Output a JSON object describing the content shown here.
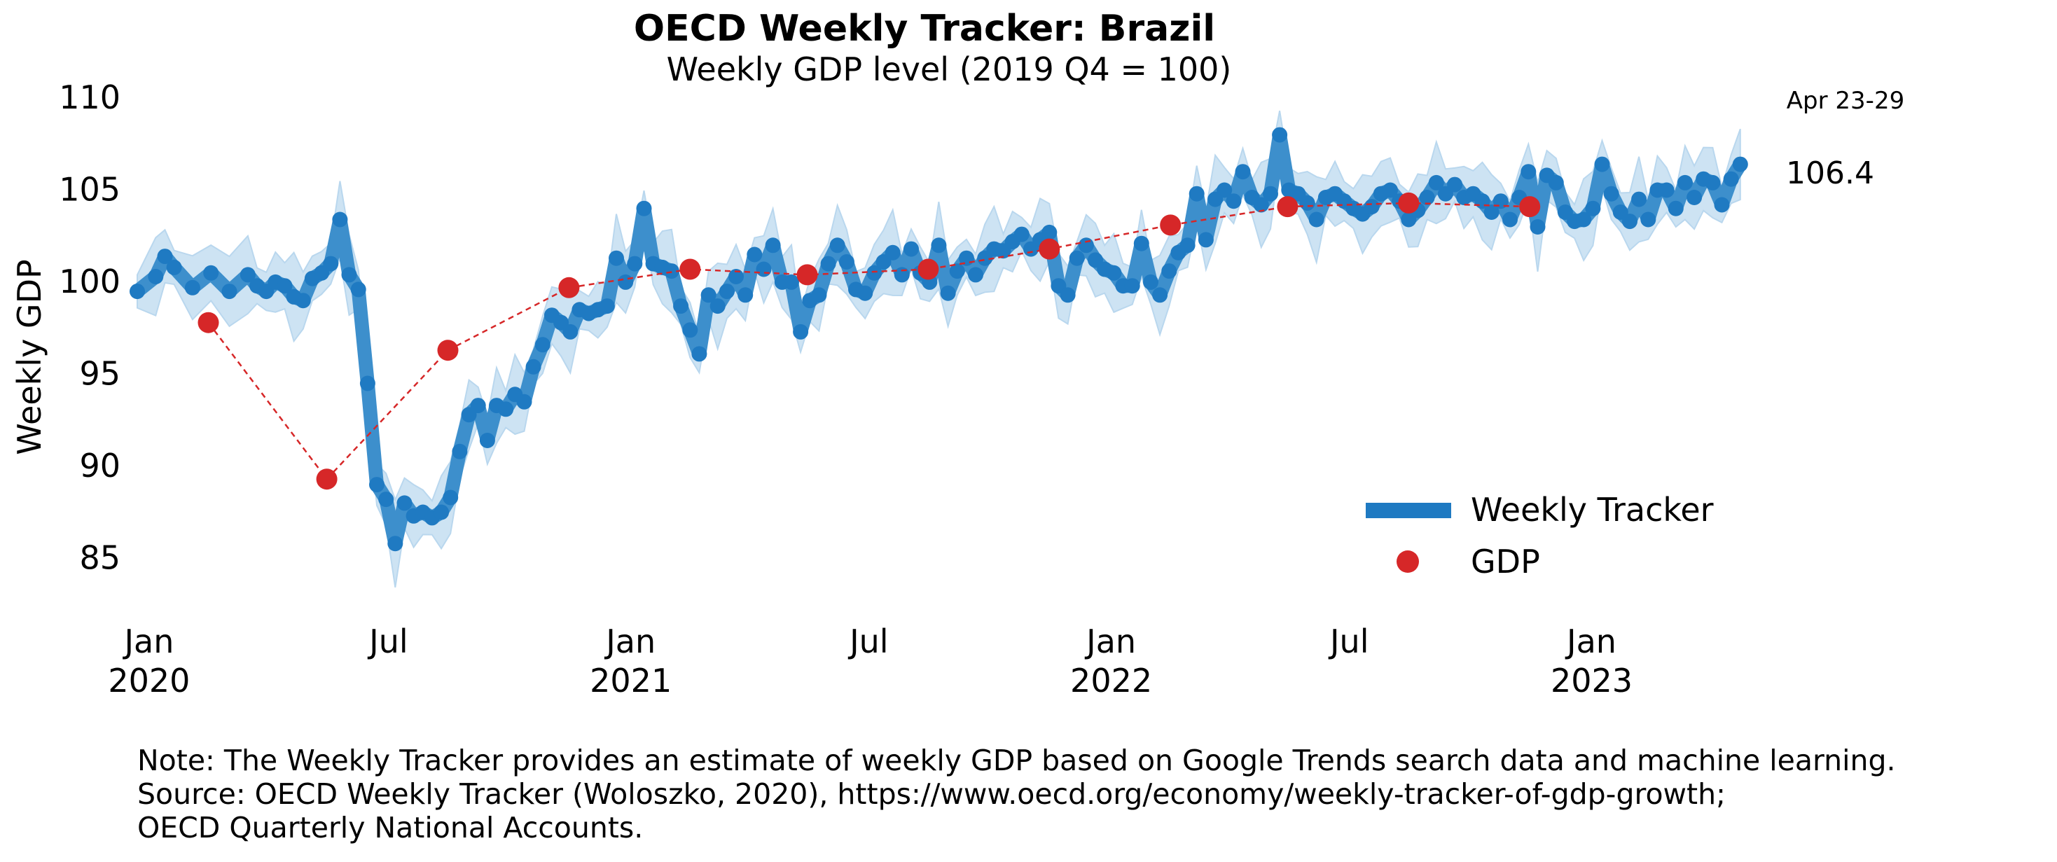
{
  "chart_data": {
    "type": "line",
    "title": "OECD Weekly Tracker: Brazil",
    "subtitle": "Weekly GDP level (2019 Q4 = 100)",
    "ylabel": "Weekly GDP",
    "xlabel": "",
    "ylim": [
      82.5,
      110
    ],
    "xlim": [
      "2019-12-23",
      "2023-05-01"
    ],
    "y_ticks": [
      85,
      90,
      95,
      100,
      105,
      110
    ],
    "x_ticks": [
      {
        "date": "2020-01-01",
        "label": "Jan",
        "year": "2020"
      },
      {
        "date": "2020-07-01",
        "label": "Jul",
        "year": ""
      },
      {
        "date": "2021-01-01",
        "label": "Jan",
        "year": "2021"
      },
      {
        "date": "2021-07-01",
        "label": "Jul",
        "year": ""
      },
      {
        "date": "2022-01-01",
        "label": "Jan",
        "year": "2022"
      },
      {
        "date": "2022-07-01",
        "label": "Jul",
        "year": ""
      },
      {
        "date": "2023-01-01",
        "label": "Jan",
        "year": "2023"
      }
    ],
    "grid": false,
    "legend_position": "lower-right",
    "legend": [
      {
        "label": "Weekly Tracker",
        "marker": "band"
      },
      {
        "label": "GDP",
        "marker": "dot"
      }
    ],
    "series": [
      {
        "name": "Weekly Tracker",
        "color": "#1f7ac2",
        "band_color": "#cde3f3",
        "points": [
          [
            "2019-12-23",
            99.5
          ],
          [
            "2020-01-06",
            100.3
          ],
          [
            "2020-01-13",
            101.4
          ],
          [
            "2020-01-20",
            100.8
          ],
          [
            "2020-02-03",
            99.7
          ],
          [
            "2020-02-17",
            100.5
          ],
          [
            "2020-03-02",
            99.5
          ],
          [
            "2020-03-16",
            100.4
          ],
          [
            "2020-03-23",
            99.8
          ],
          [
            "2020-03-30",
            99.5
          ],
          [
            "2020-04-06",
            100.0
          ],
          [
            "2020-04-13",
            99.8
          ],
          [
            "2020-04-20",
            99.2
          ],
          [
            "2020-04-27",
            99.0
          ],
          [
            "2020-05-04",
            100.2
          ],
          [
            "2020-05-11",
            100.5
          ],
          [
            "2020-05-18",
            101.0
          ],
          [
            "2020-05-25",
            103.4
          ],
          [
            "2020-06-01",
            100.4
          ],
          [
            "2020-06-08",
            99.6
          ],
          [
            "2020-06-15",
            94.5
          ],
          [
            "2020-06-22",
            89.0
          ],
          [
            "2020-06-29",
            88.2
          ],
          [
            "2020-07-06",
            85.8
          ],
          [
            "2020-07-13",
            88.0
          ],
          [
            "2020-07-20",
            87.3
          ],
          [
            "2020-07-27",
            87.5
          ],
          [
            "2020-08-03",
            87.2
          ],
          [
            "2020-08-10",
            87.5
          ],
          [
            "2020-08-17",
            88.3
          ],
          [
            "2020-08-24",
            90.8
          ],
          [
            "2020-08-31",
            92.8
          ],
          [
            "2020-09-07",
            93.3
          ],
          [
            "2020-09-14",
            91.4
          ],
          [
            "2020-09-21",
            93.3
          ],
          [
            "2020-09-28",
            93.1
          ],
          [
            "2020-10-05",
            93.9
          ],
          [
            "2020-10-12",
            93.5
          ],
          [
            "2020-10-19",
            95.4
          ],
          [
            "2020-10-26",
            96.6
          ],
          [
            "2020-11-02",
            98.2
          ],
          [
            "2020-11-09",
            97.8
          ],
          [
            "2020-11-16",
            97.3
          ],
          [
            "2020-11-23",
            98.5
          ],
          [
            "2020-11-30",
            98.3
          ],
          [
            "2020-12-07",
            98.5
          ],
          [
            "2020-12-14",
            98.7
          ],
          [
            "2020-12-21",
            101.3
          ],
          [
            "2020-12-28",
            100.0
          ],
          [
            "2021-01-04",
            101.0
          ],
          [
            "2021-01-11",
            104.0
          ],
          [
            "2021-01-18",
            101.0
          ],
          [
            "2021-01-25",
            100.8
          ],
          [
            "2021-02-01",
            100.6
          ],
          [
            "2021-02-08",
            98.7
          ],
          [
            "2021-02-15",
            97.4
          ],
          [
            "2021-02-22",
            96.1
          ],
          [
            "2021-03-01",
            99.3
          ],
          [
            "2021-03-08",
            98.7
          ],
          [
            "2021-03-15",
            99.5
          ],
          [
            "2021-03-22",
            100.3
          ],
          [
            "2021-03-29",
            99.3
          ],
          [
            "2021-04-05",
            101.5
          ],
          [
            "2021-04-12",
            100.7
          ],
          [
            "2021-04-19",
            102.0
          ],
          [
            "2021-04-26",
            100.0
          ],
          [
            "2021-05-03",
            100.0
          ],
          [
            "2021-05-10",
            97.3
          ],
          [
            "2021-05-17",
            99.0
          ],
          [
            "2021-05-24",
            99.3
          ],
          [
            "2021-05-31",
            101.0
          ],
          [
            "2021-06-07",
            102.0
          ],
          [
            "2021-06-14",
            101.1
          ],
          [
            "2021-06-21",
            99.6
          ],
          [
            "2021-06-28",
            99.4
          ],
          [
            "2021-07-05",
            100.5
          ],
          [
            "2021-07-12",
            101.1
          ],
          [
            "2021-07-19",
            101.6
          ],
          [
            "2021-07-26",
            100.4
          ],
          [
            "2021-08-02",
            101.8
          ],
          [
            "2021-08-09",
            100.5
          ],
          [
            "2021-08-16",
            100.0
          ],
          [
            "2021-08-23",
            102.0
          ],
          [
            "2021-08-30",
            99.4
          ],
          [
            "2021-09-06",
            100.6
          ],
          [
            "2021-09-13",
            101.3
          ],
          [
            "2021-09-20",
            100.4
          ],
          [
            "2021-09-27",
            101.3
          ],
          [
            "2021-10-04",
            101.8
          ],
          [
            "2021-10-11",
            101.7
          ],
          [
            "2021-10-18",
            102.2
          ],
          [
            "2021-10-25",
            102.6
          ],
          [
            "2021-11-01",
            101.8
          ],
          [
            "2021-11-08",
            102.3
          ],
          [
            "2021-11-15",
            102.7
          ],
          [
            "2021-11-22",
            99.8
          ],
          [
            "2021-11-29",
            99.3
          ],
          [
            "2021-12-06",
            101.3
          ],
          [
            "2021-12-13",
            102.0
          ],
          [
            "2021-12-20",
            101.2
          ],
          [
            "2021-12-27",
            100.7
          ],
          [
            "2022-01-03",
            100.5
          ],
          [
            "2022-01-10",
            99.8
          ],
          [
            "2022-01-17",
            99.8
          ],
          [
            "2022-01-24",
            102.1
          ],
          [
            "2022-01-31",
            100.0
          ],
          [
            "2022-02-07",
            99.3
          ],
          [
            "2022-02-14",
            100.6
          ],
          [
            "2022-02-21",
            101.6
          ],
          [
            "2022-02-28",
            102.0
          ],
          [
            "2022-03-07",
            104.8
          ],
          [
            "2022-03-14",
            102.3
          ],
          [
            "2022-03-21",
            104.5
          ],
          [
            "2022-03-28",
            105.0
          ],
          [
            "2022-04-04",
            104.4
          ],
          [
            "2022-04-11",
            106.0
          ],
          [
            "2022-04-18",
            104.6
          ],
          [
            "2022-04-25",
            104.2
          ],
          [
            "2022-05-02",
            104.8
          ],
          [
            "2022-05-09",
            108.0
          ],
          [
            "2022-05-16",
            105.0
          ],
          [
            "2022-05-23",
            104.8
          ],
          [
            "2022-05-30",
            104.3
          ],
          [
            "2022-06-06",
            103.4
          ],
          [
            "2022-06-13",
            104.6
          ],
          [
            "2022-06-20",
            104.8
          ],
          [
            "2022-06-27",
            104.4
          ],
          [
            "2022-07-04",
            104.0
          ],
          [
            "2022-07-11",
            103.7
          ],
          [
            "2022-07-18",
            104.1
          ],
          [
            "2022-07-25",
            104.8
          ],
          [
            "2022-08-01",
            105.0
          ],
          [
            "2022-08-08",
            104.4
          ],
          [
            "2022-08-15",
            103.4
          ],
          [
            "2022-08-22",
            103.9
          ],
          [
            "2022-08-29",
            104.6
          ],
          [
            "2022-09-05",
            105.4
          ],
          [
            "2022-09-12",
            104.8
          ],
          [
            "2022-09-19",
            105.3
          ],
          [
            "2022-09-26",
            104.6
          ],
          [
            "2022-10-03",
            104.8
          ],
          [
            "2022-10-10",
            104.4
          ],
          [
            "2022-10-17",
            103.8
          ],
          [
            "2022-10-24",
            104.4
          ],
          [
            "2022-10-31",
            103.4
          ],
          [
            "2022-11-07",
            104.6
          ],
          [
            "2022-11-14",
            106.0
          ],
          [
            "2022-11-21",
            103.0
          ],
          [
            "2022-11-28",
            105.8
          ],
          [
            "2022-12-05",
            105.4
          ],
          [
            "2022-12-12",
            103.8
          ],
          [
            "2022-12-19",
            103.3
          ],
          [
            "2022-12-26",
            103.4
          ],
          [
            "2023-01-02",
            104.0
          ],
          [
            "2023-01-09",
            106.4
          ],
          [
            "2023-01-16",
            104.8
          ],
          [
            "2023-01-23",
            103.8
          ],
          [
            "2023-01-30",
            103.3
          ],
          [
            "2023-02-06",
            104.5
          ],
          [
            "2023-02-13",
            103.4
          ],
          [
            "2023-02-20",
            105.0
          ],
          [
            "2023-02-27",
            105.0
          ],
          [
            "2023-03-06",
            104.0
          ],
          [
            "2023-03-13",
            105.4
          ],
          [
            "2023-03-20",
            104.6
          ],
          [
            "2023-03-27",
            105.6
          ],
          [
            "2023-04-03",
            105.4
          ],
          [
            "2023-04-10",
            104.2
          ],
          [
            "2023-04-17",
            105.6
          ],
          [
            "2023-04-24",
            106.4
          ]
        ],
        "last_value_label": "106.4",
        "last_period_label": "Apr 23-29"
      },
      {
        "name": "GDP",
        "color": "#d62728",
        "points": [
          [
            "2020-02-15",
            97.8
          ],
          [
            "2020-05-15",
            89.3
          ],
          [
            "2020-08-15",
            96.3
          ],
          [
            "2020-11-15",
            99.7
          ],
          [
            "2021-02-15",
            100.7
          ],
          [
            "2021-05-15",
            100.4
          ],
          [
            "2021-08-15",
            100.7
          ],
          [
            "2021-11-15",
            101.8
          ],
          [
            "2022-02-15",
            103.1
          ],
          [
            "2022-05-15",
            104.1
          ],
          [
            "2022-08-15",
            104.3
          ],
          [
            "2022-11-15",
            104.1
          ]
        ]
      }
    ]
  },
  "notes": {
    "line1": "Note: The Weekly Tracker provides an estimate of weekly GDP based on Google Trends search data and machine learning.",
    "line2": "Source: OECD Weekly Tracker (Woloszko, 2020), https://www.oecd.org/economy/weekly-tracker-of-gdp-growth;",
    "line3": "OECD Quarterly National Accounts."
  }
}
